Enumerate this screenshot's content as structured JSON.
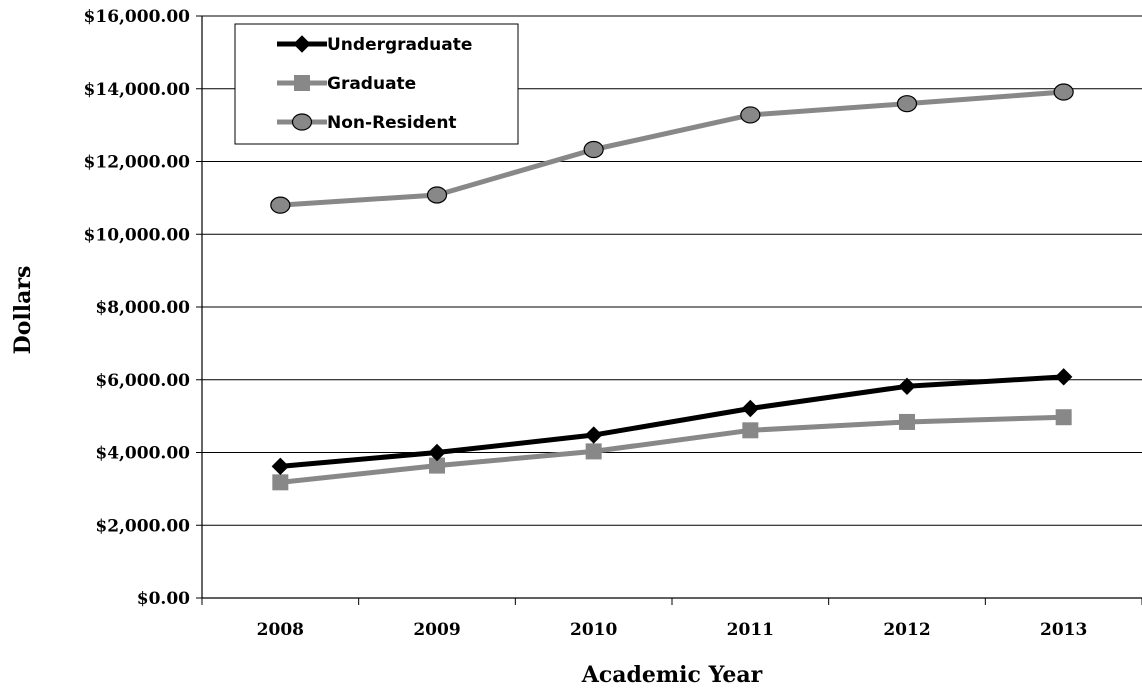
{
  "chart_data": {
    "type": "line",
    "xlabel": "Academic Year",
    "ylabel": "Dollars",
    "categories": [
      "2008",
      "2009",
      "2010",
      "2011",
      "2012",
      "2013"
    ],
    "ylim": [
      0,
      16000
    ],
    "yticks": [
      0,
      2000,
      4000,
      6000,
      8000,
      10000,
      12000,
      14000,
      16000
    ],
    "ytick_labels": [
      "$0.00",
      "$2,000.00",
      "$4,000.00",
      "$6,000.00",
      "$8,000.00",
      "$10,000.00",
      "$12,000.00",
      "$14,000.00",
      "$16,000.00"
    ],
    "grid": true,
    "legend_position": "top-left",
    "series": [
      {
        "name": "Undergraduate",
        "values": [
          3620,
          4000,
          4480,
          5210,
          5820,
          6080
        ],
        "color": "#000000",
        "marker": "diamond"
      },
      {
        "name": "Graduate",
        "values": [
          3180,
          3640,
          4030,
          4610,
          4840,
          4970
        ],
        "color": "#888888",
        "marker": "square"
      },
      {
        "name": "Non-Resident",
        "values": [
          10800,
          11080,
          12330,
          13280,
          13590,
          13910
        ],
        "color": "#888888",
        "marker": "circle"
      }
    ]
  }
}
